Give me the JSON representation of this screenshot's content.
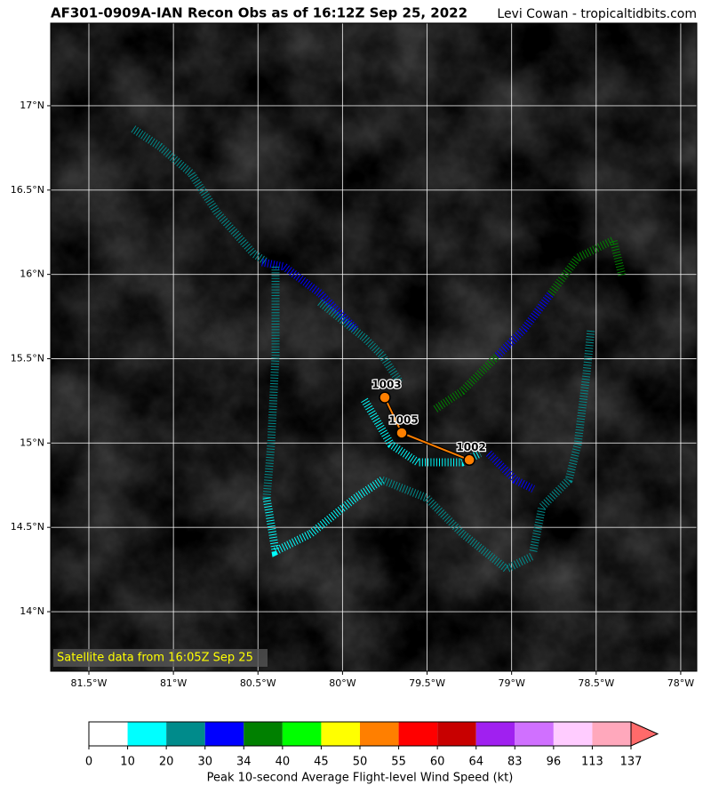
{
  "header": {
    "title": "AF301-0909A-IAN Recon Obs as of 16:12Z Sep 25, 2022",
    "credit": "Levi Cowan - tropicaltidbits.com"
  },
  "map": {
    "xlim": [
      -81.726,
      -77.905
    ],
    "ylim": [
      13.647,
      17.49
    ],
    "xticks": [
      {
        "value": -81.5,
        "label": "81.5°W"
      },
      {
        "value": -81,
        "label": "81°W"
      },
      {
        "value": -80.5,
        "label": "80.5°W"
      },
      {
        "value": -80,
        "label": "80°W"
      },
      {
        "value": -79.5,
        "label": "79.5°W"
      },
      {
        "value": -79,
        "label": "79°W"
      },
      {
        "value": -78.5,
        "label": "78.5°W"
      },
      {
        "value": -78,
        "label": "78°W"
      }
    ],
    "yticks": [
      {
        "value": 14,
        "label": "14°N"
      },
      {
        "value": 14.5,
        "label": "14.5°N"
      },
      {
        "value": 15,
        "label": "15°N"
      },
      {
        "value": 15.5,
        "label": "15.5°N"
      },
      {
        "value": 16,
        "label": "16°N"
      },
      {
        "value": 16.5,
        "label": "16.5°N"
      },
      {
        "value": 17,
        "label": "17°N"
      }
    ],
    "centers": [
      {
        "lon": -79.75,
        "lat": 15.27,
        "pressure": 1003
      },
      {
        "lon": -79.65,
        "lat": 15.06,
        "pressure": 1005
      },
      {
        "lon": -79.25,
        "lat": 14.9,
        "pressure": 1002
      }
    ],
    "satellite_note": "Satellite data from 16:05Z Sep 25"
  },
  "colorbar": {
    "ticks": [
      0,
      10,
      20,
      30,
      34,
      40,
      45,
      50,
      55,
      60,
      64,
      83,
      96,
      113,
      137
    ],
    "colors": [
      "#ffffff",
      "#00ffff",
      "#008b8b",
      "#0000ff",
      "#008000",
      "#00ff00",
      "#ffff00",
      "#ff7f00",
      "#ff0000",
      "#c80000",
      "#a020f0",
      "#d070ff",
      "#ffccff",
      "#ffa8bc"
    ],
    "extend_color": "#ff6a6a",
    "label": "Peak 10-second Average Flight-level Wind Speed (kt)"
  }
}
